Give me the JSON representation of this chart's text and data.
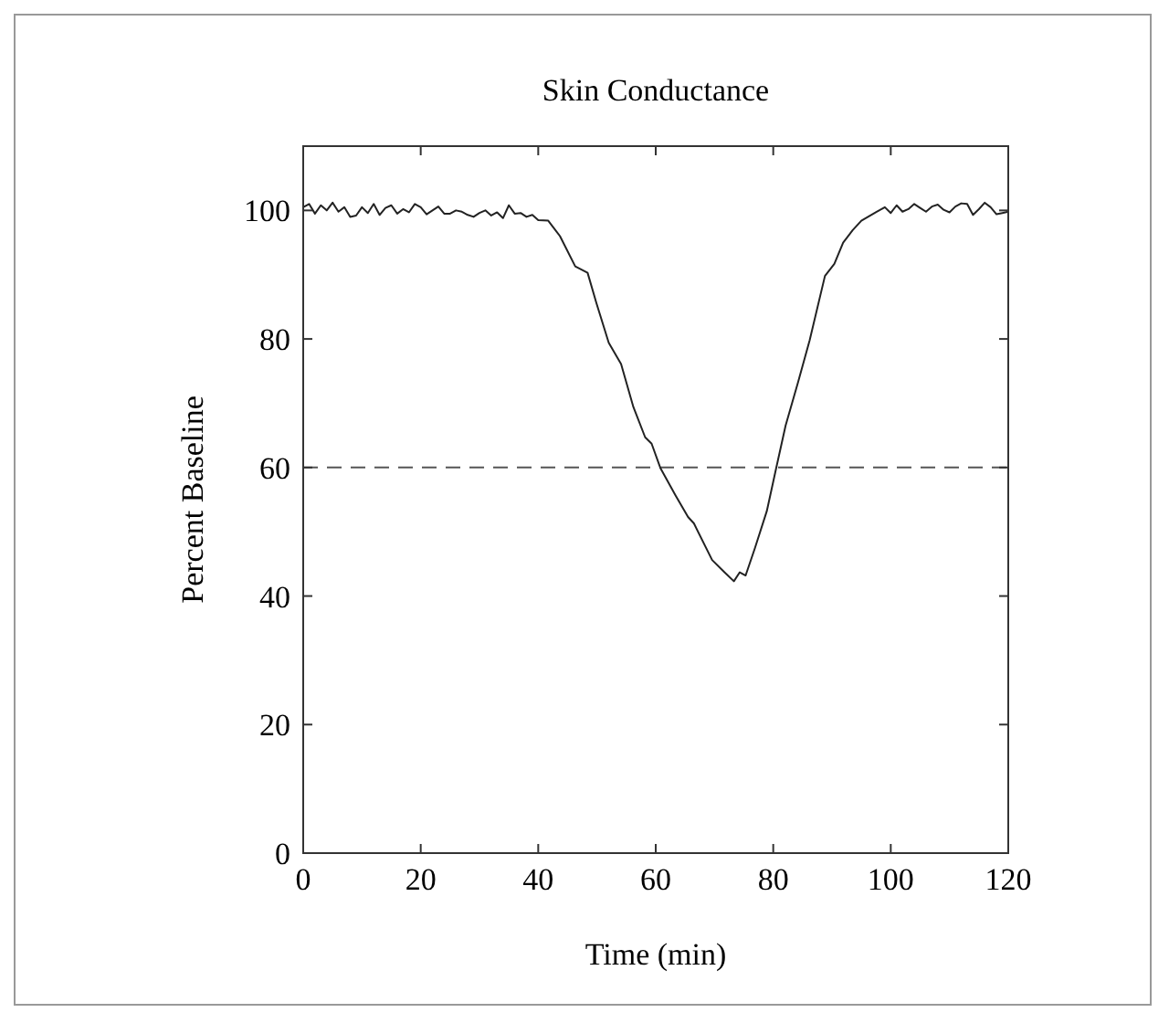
{
  "chart_data": {
    "type": "line",
    "title": "Skin Conductance",
    "xlabel": "Time (min)",
    "ylabel": "Percent Baseline",
    "x": [
      0,
      1,
      2,
      3,
      4,
      5,
      6,
      7,
      8,
      9,
      10,
      11,
      12,
      13,
      14,
      15,
      16,
      17,
      18,
      19,
      20,
      21,
      22,
      23,
      24,
      25,
      26,
      27,
      28,
      29,
      30,
      31,
      32,
      33,
      34,
      35,
      36,
      37,
      38,
      39,
      40,
      41.7,
      43.7,
      46.3,
      48.4,
      49.9,
      52,
      54.1,
      56.2,
      58.2,
      59.3,
      60.8,
      63.4,
      65.5,
      66.5,
      69.6,
      71.7,
      73.3,
      74.3,
      75.3,
      76.9,
      78.9,
      80.5,
      82.1,
      84.2,
      86.2,
      88.8,
      90.4,
      91.9,
      93.5,
      95,
      97.6,
      99,
      100,
      101,
      102,
      103,
      104,
      105,
      106,
      107,
      108,
      109,
      110,
      111,
      112,
      113,
      114,
      115,
      116,
      117,
      118,
      119,
      120
    ],
    "series": [
      {
        "color": "#222222",
        "values": [
          100.5,
          101,
          99.5,
          100.8,
          100,
          101.2,
          99.8,
          100.5,
          99,
          99.2,
          100.5,
          99.6,
          101,
          99.3,
          100.4,
          100.8,
          99.5,
          100.2,
          99.7,
          101,
          100.5,
          99.4,
          100,
          100.6,
          99.5,
          99.5,
          100,
          99.8,
          99.3,
          99,
          99.6,
          100,
          99.2,
          99.7,
          98.8,
          100.8,
          99.5,
          99.6,
          99,
          99.3,
          98.5,
          98.4,
          96,
          91.3,
          90.3,
          85.6,
          79.4,
          76.1,
          69.4,
          64.7,
          63.7,
          59.9,
          55.6,
          52.3,
          51.3,
          45.6,
          43.7,
          42.3,
          43.7,
          43.2,
          47.5,
          53.2,
          59.9,
          66.5,
          73.2,
          79.8,
          89.8,
          91.7,
          95,
          96.9,
          98.4,
          99.8,
          100.5,
          99.6,
          100.8,
          99.8,
          100.2,
          101,
          100.4,
          99.8,
          100.6,
          100.9,
          100.1,
          99.7,
          100.6,
          101.1,
          101,
          99.3,
          100.2,
          101.2,
          100.5,
          99.4,
          99.6,
          99.8
        ]
      }
    ],
    "xlim": [
      0,
      120
    ],
    "xticks": [
      0,
      20,
      40,
      60,
      80,
      100,
      120
    ],
    "ylim": [
      0,
      110
    ],
    "yticks": [
      0,
      20,
      40,
      60,
      80,
      100
    ],
    "ref_lines": [
      {
        "axis": "y",
        "value": 60,
        "color": "#555555",
        "line_style": "dashed"
      }
    ],
    "line_style": "solid",
    "marker": "none"
  }
}
